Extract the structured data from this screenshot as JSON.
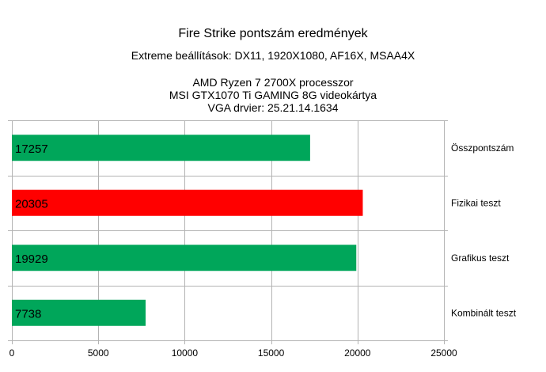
{
  "chart_data": {
    "type": "bar",
    "orientation": "horizontal",
    "title": "Fire Strike pontszám eredmények",
    "subtitle_lines": [
      "Extreme beállítások: DX11, 1920X1080, AF16X, MSAA4X",
      "AMD Ryzen 7 2700X  processzor",
      "MSI GTX1070 Ti GAMING 8G videokártya",
      "VGA drvier: 25.21.14.1634"
    ],
    "categories": [
      "Összpontszám",
      "Fizikai teszt",
      "Grafikus teszt",
      "Kombinált teszt"
    ],
    "values": [
      17257,
      20305,
      19929,
      7738
    ],
    "value_labels": [
      "17257",
      "20305",
      "19929",
      "7738"
    ],
    "bar_colors": [
      "#00a65a",
      "#ff0000",
      "#00a65a",
      "#00a65a"
    ],
    "xlim": [
      0,
      25000
    ],
    "xticks": [
      0,
      5000,
      10000,
      15000,
      20000,
      25000
    ],
    "xtick_labels": [
      "0",
      "5000",
      "10000",
      "15000",
      "20000",
      "25000"
    ],
    "category_labels_position": "right",
    "value_labels_position": "inside-left",
    "grid": true,
    "legend": "none",
    "xlabel": "",
    "ylabel": ""
  }
}
